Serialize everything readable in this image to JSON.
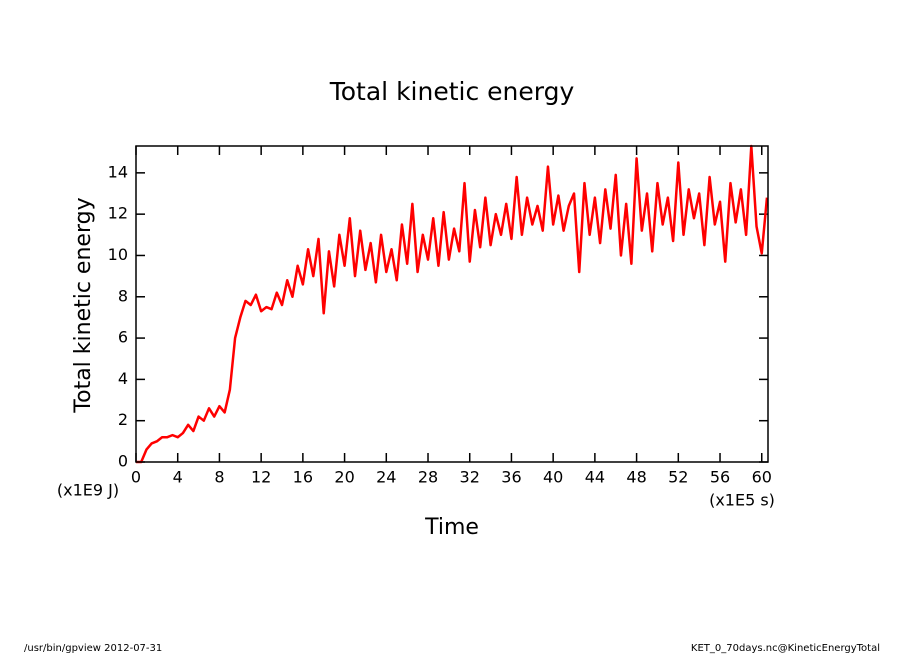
{
  "chart_data": {
    "type": "line",
    "title": "Total kinetic energy",
    "y_label": "Total kinetic energy",
    "x_label": "Time",
    "y_unit": "(x1E9 J)",
    "x_unit": "(x1E5 s)",
    "footer_left": "/usr/bin/gpview  2012-07-31",
    "footer_right": "KET_0_70days.nc@KineticEnergyTotal",
    "color": "#ff0000",
    "x": [
      0,
      0.5,
      1,
      1.5,
      2,
      2.5,
      3,
      3.5,
      4,
      4.5,
      5,
      5.5,
      6,
      6.5,
      7,
      7.5,
      8,
      8.5,
      9,
      9.5,
      10,
      10.5,
      11,
      11.5,
      12,
      12.5,
      13,
      13.5,
      14,
      14.5,
      15,
      15.5,
      16,
      16.5,
      17,
      17.5,
      18,
      18.5,
      19,
      19.5,
      20,
      20.5,
      21,
      21.5,
      22,
      22.5,
      23,
      23.5,
      24,
      24.5,
      25,
      25.5,
      26,
      26.5,
      27,
      27.5,
      28,
      28.5,
      29,
      29.5,
      30,
      30.5,
      31,
      31.5,
      32,
      32.5,
      33,
      33.5,
      34,
      34.5,
      35,
      35.5,
      36,
      36.5,
      37,
      37.5,
      38,
      38.5,
      39,
      39.5,
      40,
      40.5,
      41,
      41.5,
      42,
      42.5,
      43,
      43.5,
      44,
      44.5,
      45,
      45.5,
      46,
      46.5,
      47,
      47.5,
      48,
      48.5,
      49,
      49.5,
      50,
      50.5,
      51,
      51.5,
      52,
      52.5,
      53,
      53.5,
      54,
      54.5,
      55,
      55.5,
      56,
      56.5,
      57,
      57.5,
      58,
      58.5,
      59,
      59.5,
      60,
      60.5
    ],
    "values": [
      0,
      0,
      0.6,
      0.9,
      1.0,
      1.2,
      1.2,
      1.3,
      1.2,
      1.4,
      1.8,
      1.5,
      2.2,
      2.0,
      2.6,
      2.2,
      2.7,
      2.4,
      3.5,
      6.0,
      7.0,
      7.8,
      7.6,
      8.1,
      7.3,
      7.5,
      7.4,
      8.2,
      7.6,
      8.8,
      8.0,
      9.5,
      8.6,
      10.3,
      9.0,
      10.8,
      7.2,
      10.2,
      8.5,
      11.0,
      9.5,
      11.8,
      9.0,
      11.2,
      9.3,
      10.6,
      8.7,
      11.0,
      9.2,
      10.3,
      8.8,
      11.5,
      9.6,
      12.5,
      9.2,
      11.0,
      9.8,
      11.8,
      9.5,
      12.1,
      9.8,
      11.3,
      10.2,
      13.5,
      9.7,
      12.2,
      10.4,
      12.8,
      10.5,
      12.0,
      11.0,
      12.5,
      10.8,
      13.8,
      11.0,
      12.8,
      11.5,
      12.4,
      11.2,
      14.3,
      11.5,
      12.9,
      11.2,
      12.4,
      13.0,
      9.2,
      13.5,
      11.0,
      12.8,
      10.6,
      13.2,
      11.3,
      13.9,
      10.0,
      12.5,
      9.6,
      14.7,
      11.2,
      13.0,
      10.2,
      13.5,
      11.5,
      12.8,
      10.7,
      14.5,
      11.0,
      13.2,
      11.8,
      13.0,
      10.5,
      13.8,
      11.5,
      12.6,
      9.7,
      13.5,
      11.6,
      13.2,
      11.0,
      15.3,
      11.4,
      10.1,
      12.8
    ],
    "xlim": [
      0,
      60.6
    ],
    "ylim": [
      0,
      15.3
    ],
    "xticks": [
      0,
      4,
      8,
      12,
      16,
      20,
      24,
      28,
      32,
      36,
      40,
      44,
      48,
      52,
      56,
      60
    ],
    "yticks": [
      0,
      2,
      4,
      6,
      8,
      10,
      12,
      14
    ]
  }
}
